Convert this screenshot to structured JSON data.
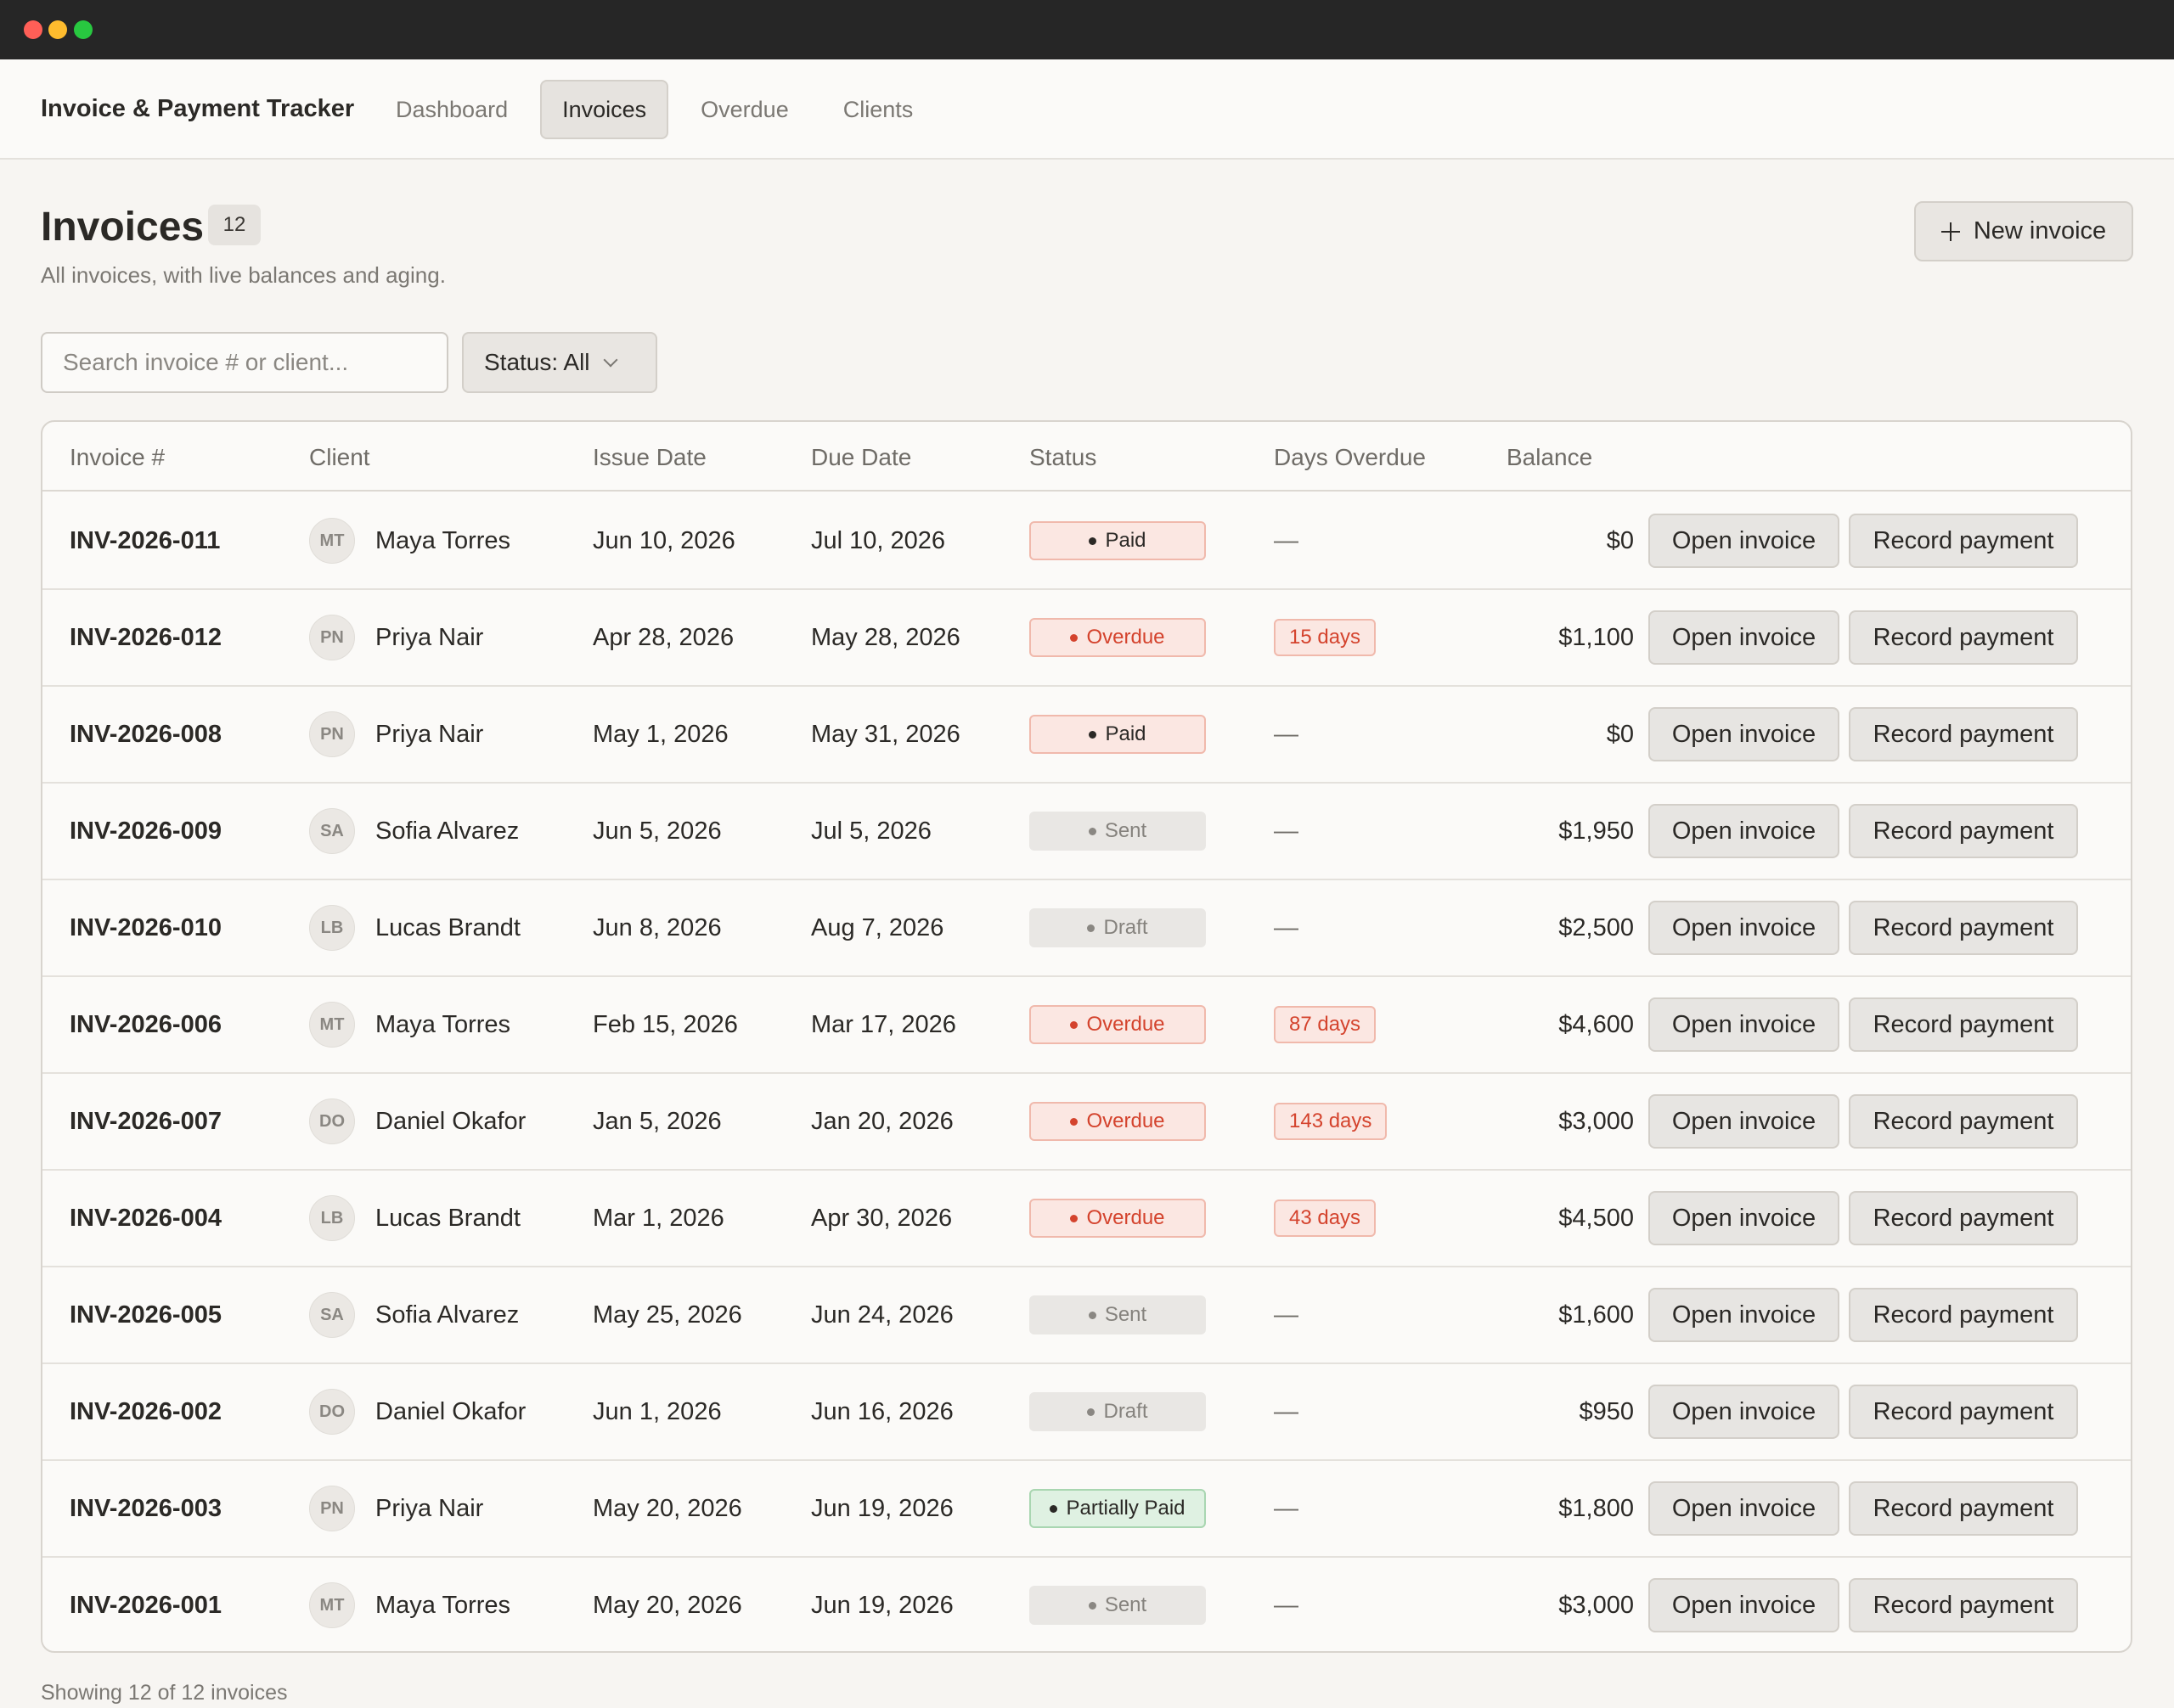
{
  "app": {
    "title": "Invoice & Payment Tracker",
    "tabs": [
      {
        "label": "Dashboard",
        "active": false
      },
      {
        "label": "Invoices",
        "active": true
      },
      {
        "label": "Overdue",
        "active": false
      },
      {
        "label": "Clients",
        "active": false
      }
    ]
  },
  "page": {
    "title": "Invoices",
    "count": "12",
    "subtitle": "All invoices, with live balances and aging.",
    "new_button": "New invoice"
  },
  "filters": {
    "search_placeholder": "Search invoice # or client...",
    "status_label": "Status: All"
  },
  "table": {
    "columns": [
      "Invoice #",
      "Client",
      "Issue Date",
      "Due Date",
      "Status",
      "Days Overdue",
      "Balance"
    ],
    "open_label": "Open invoice",
    "record_label": "Record payment",
    "rows": [
      {
        "invoice": "INV-2026-011",
        "initials": "MT",
        "client": "Maya Torres",
        "issue": "Jun 10, 2026",
        "due": "Jul 10, 2026",
        "status": "Paid",
        "status_kind": "paid",
        "days": "—",
        "balance": "$0"
      },
      {
        "invoice": "INV-2026-012",
        "initials": "PN",
        "client": "Priya Nair",
        "issue": "Apr 28, 2026",
        "due": "May 28, 2026",
        "status": "Overdue",
        "status_kind": "overdue",
        "days": "15 days",
        "balance": "$1,100"
      },
      {
        "invoice": "INV-2026-008",
        "initials": "PN",
        "client": "Priya Nair",
        "issue": "May 1, 2026",
        "due": "May 31, 2026",
        "status": "Paid",
        "status_kind": "paid",
        "days": "—",
        "balance": "$0"
      },
      {
        "invoice": "INV-2026-009",
        "initials": "SA",
        "client": "Sofia Alvarez",
        "issue": "Jun 5, 2026",
        "due": "Jul 5, 2026",
        "status": "Sent",
        "status_kind": "sent",
        "days": "—",
        "balance": "$1,950"
      },
      {
        "invoice": "INV-2026-010",
        "initials": "LB",
        "client": "Lucas Brandt",
        "issue": "Jun 8, 2026",
        "due": "Aug 7, 2026",
        "status": "Draft",
        "status_kind": "draft",
        "days": "—",
        "balance": "$2,500"
      },
      {
        "invoice": "INV-2026-006",
        "initials": "MT",
        "client": "Maya Torres",
        "issue": "Feb 15, 2026",
        "due": "Mar 17, 2026",
        "status": "Overdue",
        "status_kind": "overdue",
        "days": "87 days",
        "balance": "$4,600"
      },
      {
        "invoice": "INV-2026-007",
        "initials": "DO",
        "client": "Daniel Okafor",
        "issue": "Jan 5, 2026",
        "due": "Jan 20, 2026",
        "status": "Overdue",
        "status_kind": "overdue",
        "days": "143 days",
        "balance": "$3,000"
      },
      {
        "invoice": "INV-2026-004",
        "initials": "LB",
        "client": "Lucas Brandt",
        "issue": "Mar 1, 2026",
        "due": "Apr 30, 2026",
        "status": "Overdue",
        "status_kind": "overdue",
        "days": "43 days",
        "balance": "$4,500"
      },
      {
        "invoice": "INV-2026-005",
        "initials": "SA",
        "client": "Sofia Alvarez",
        "issue": "May 25, 2026",
        "due": "Jun 24, 2026",
        "status": "Sent",
        "status_kind": "sent",
        "days": "—",
        "balance": "$1,600"
      },
      {
        "invoice": "INV-2026-002",
        "initials": "DO",
        "client": "Daniel Okafor",
        "issue": "Jun 1, 2026",
        "due": "Jun 16, 2026",
        "status": "Draft",
        "status_kind": "draft",
        "days": "—",
        "balance": "$950"
      },
      {
        "invoice": "INV-2026-003",
        "initials": "PN",
        "client": "Priya Nair",
        "issue": "May 20, 2026",
        "due": "Jun 19, 2026",
        "status": "Partially Paid",
        "status_kind": "partial",
        "days": "—",
        "balance": "$1,800"
      },
      {
        "invoice": "INV-2026-001",
        "initials": "MT",
        "client": "Maya Torres",
        "issue": "May 20, 2026",
        "due": "Jun 19, 2026",
        "status": "Sent",
        "status_kind": "sent",
        "days": "—",
        "balance": "$3,000"
      }
    ]
  },
  "footer": {
    "summary": "Showing 12 of 12 invoices"
  },
  "colors": {
    "accent_overdue": "#d4432d",
    "paid_bg": "#fbe7e2",
    "partial_bg": "#dff1e2",
    "neutral_pill_bg": "#e9e7e4"
  }
}
